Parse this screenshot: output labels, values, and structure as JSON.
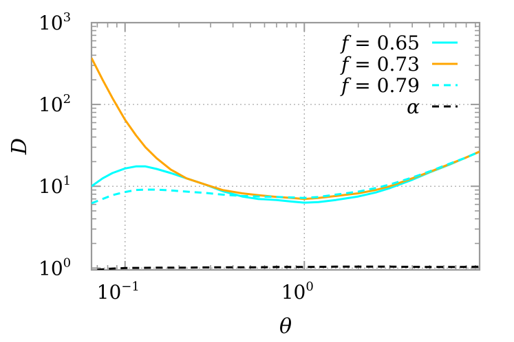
{
  "chart_data": {
    "type": "line",
    "xlabel": "θ",
    "ylabel": "D",
    "xscale": "log",
    "yscale": "log",
    "xlim": [
      0.065,
      9.5
    ],
    "ylim": [
      0.95,
      1000
    ],
    "grid": true,
    "legend_position": "top-right",
    "x_ticks": [
      {
        "value": 0.1,
        "base": "10",
        "exp": "−1"
      },
      {
        "value": 1,
        "base": "10",
        "exp": "0"
      }
    ],
    "y_ticks": [
      {
        "value": 1,
        "base": "10",
        "exp": "0"
      },
      {
        "value": 10,
        "base": "10",
        "exp": "1"
      },
      {
        "value": 100,
        "base": "10",
        "exp": "2"
      },
      {
        "value": 1000,
        "base": "10",
        "exp": "3"
      }
    ],
    "series": [
      {
        "name": "f = 0.65",
        "legend_var": "f",
        "legend_rest": " = 0.65",
        "color": "#00ffff",
        "dash": "solid",
        "x": [
          0.065,
          0.075,
          0.085,
          0.1,
          0.115,
          0.13,
          0.15,
          0.18,
          0.22,
          0.28,
          0.35,
          0.45,
          0.55,
          0.7,
          0.85,
          1.0,
          1.2,
          1.5,
          2.0,
          2.5,
          3.0,
          4.0,
          5.0,
          6.5,
          8.0,
          9.5
        ],
        "y": [
          10.0,
          12.5,
          14.5,
          16.5,
          17.5,
          17.5,
          16.3,
          14.5,
          12.5,
          10.5,
          8.7,
          7.5,
          7.0,
          6.8,
          6.5,
          6.3,
          6.4,
          6.8,
          7.5,
          8.4,
          9.5,
          12.0,
          14.8,
          18.5,
          22.5,
          26.5
        ]
      },
      {
        "name": "f = 0.73",
        "legend_var": "f",
        "legend_rest": " = 0.73",
        "color": "#ffa500",
        "dash": "solid",
        "x": [
          0.065,
          0.075,
          0.085,
          0.1,
          0.115,
          0.13,
          0.15,
          0.18,
          0.22,
          0.28,
          0.35,
          0.45,
          0.55,
          0.7,
          0.85,
          1.0,
          1.2,
          1.5,
          2.0,
          2.5,
          3.0,
          4.0,
          5.0,
          6.5,
          8.0,
          9.5
        ],
        "y": [
          370,
          200,
          120,
          65,
          42,
          30,
          22,
          16,
          12.5,
          10.5,
          9.0,
          8.2,
          7.8,
          7.4,
          7.2,
          7.0,
          7.2,
          7.6,
          8.2,
          9.0,
          10.0,
          12.5,
          15.0,
          18.8,
          22.5,
          26.5
        ]
      },
      {
        "name": "f = 0.79",
        "legend_var": "f",
        "legend_rest": " = 0.79",
        "color": "#00ffff",
        "dash": "dashed",
        "x": [
          0.065,
          0.075,
          0.085,
          0.1,
          0.115,
          0.13,
          0.15,
          0.18,
          0.22,
          0.28,
          0.35,
          0.45,
          0.55,
          0.7,
          0.85,
          1.0,
          1.2,
          1.5,
          2.0,
          2.5,
          3.0,
          4.0,
          5.0,
          6.5,
          8.0,
          9.5
        ],
        "y": [
          6.2,
          7.0,
          7.8,
          8.5,
          9.0,
          9.1,
          9.1,
          8.9,
          8.6,
          8.3,
          7.9,
          7.6,
          7.5,
          7.4,
          7.3,
          7.2,
          7.4,
          7.9,
          8.6,
          9.5,
          10.5,
          12.8,
          15.2,
          19.0,
          22.5,
          26.5
        ]
      },
      {
        "name": "α",
        "legend_var": "α",
        "legend_rest": "",
        "color": "#000000",
        "dash": "dashed",
        "x": [
          0.07,
          0.08,
          0.1,
          0.15,
          0.2,
          0.3,
          0.5,
          0.7,
          1.0,
          1.5,
          2.0,
          3.0,
          5.0,
          7.0,
          9.5
        ],
        "y": [
          0.95,
          0.98,
          1.0,
          1.01,
          1.01,
          1.02,
          1.02,
          1.03,
          1.03,
          1.04,
          1.04,
          1.04,
          1.03,
          1.03,
          1.04
        ]
      }
    ]
  }
}
